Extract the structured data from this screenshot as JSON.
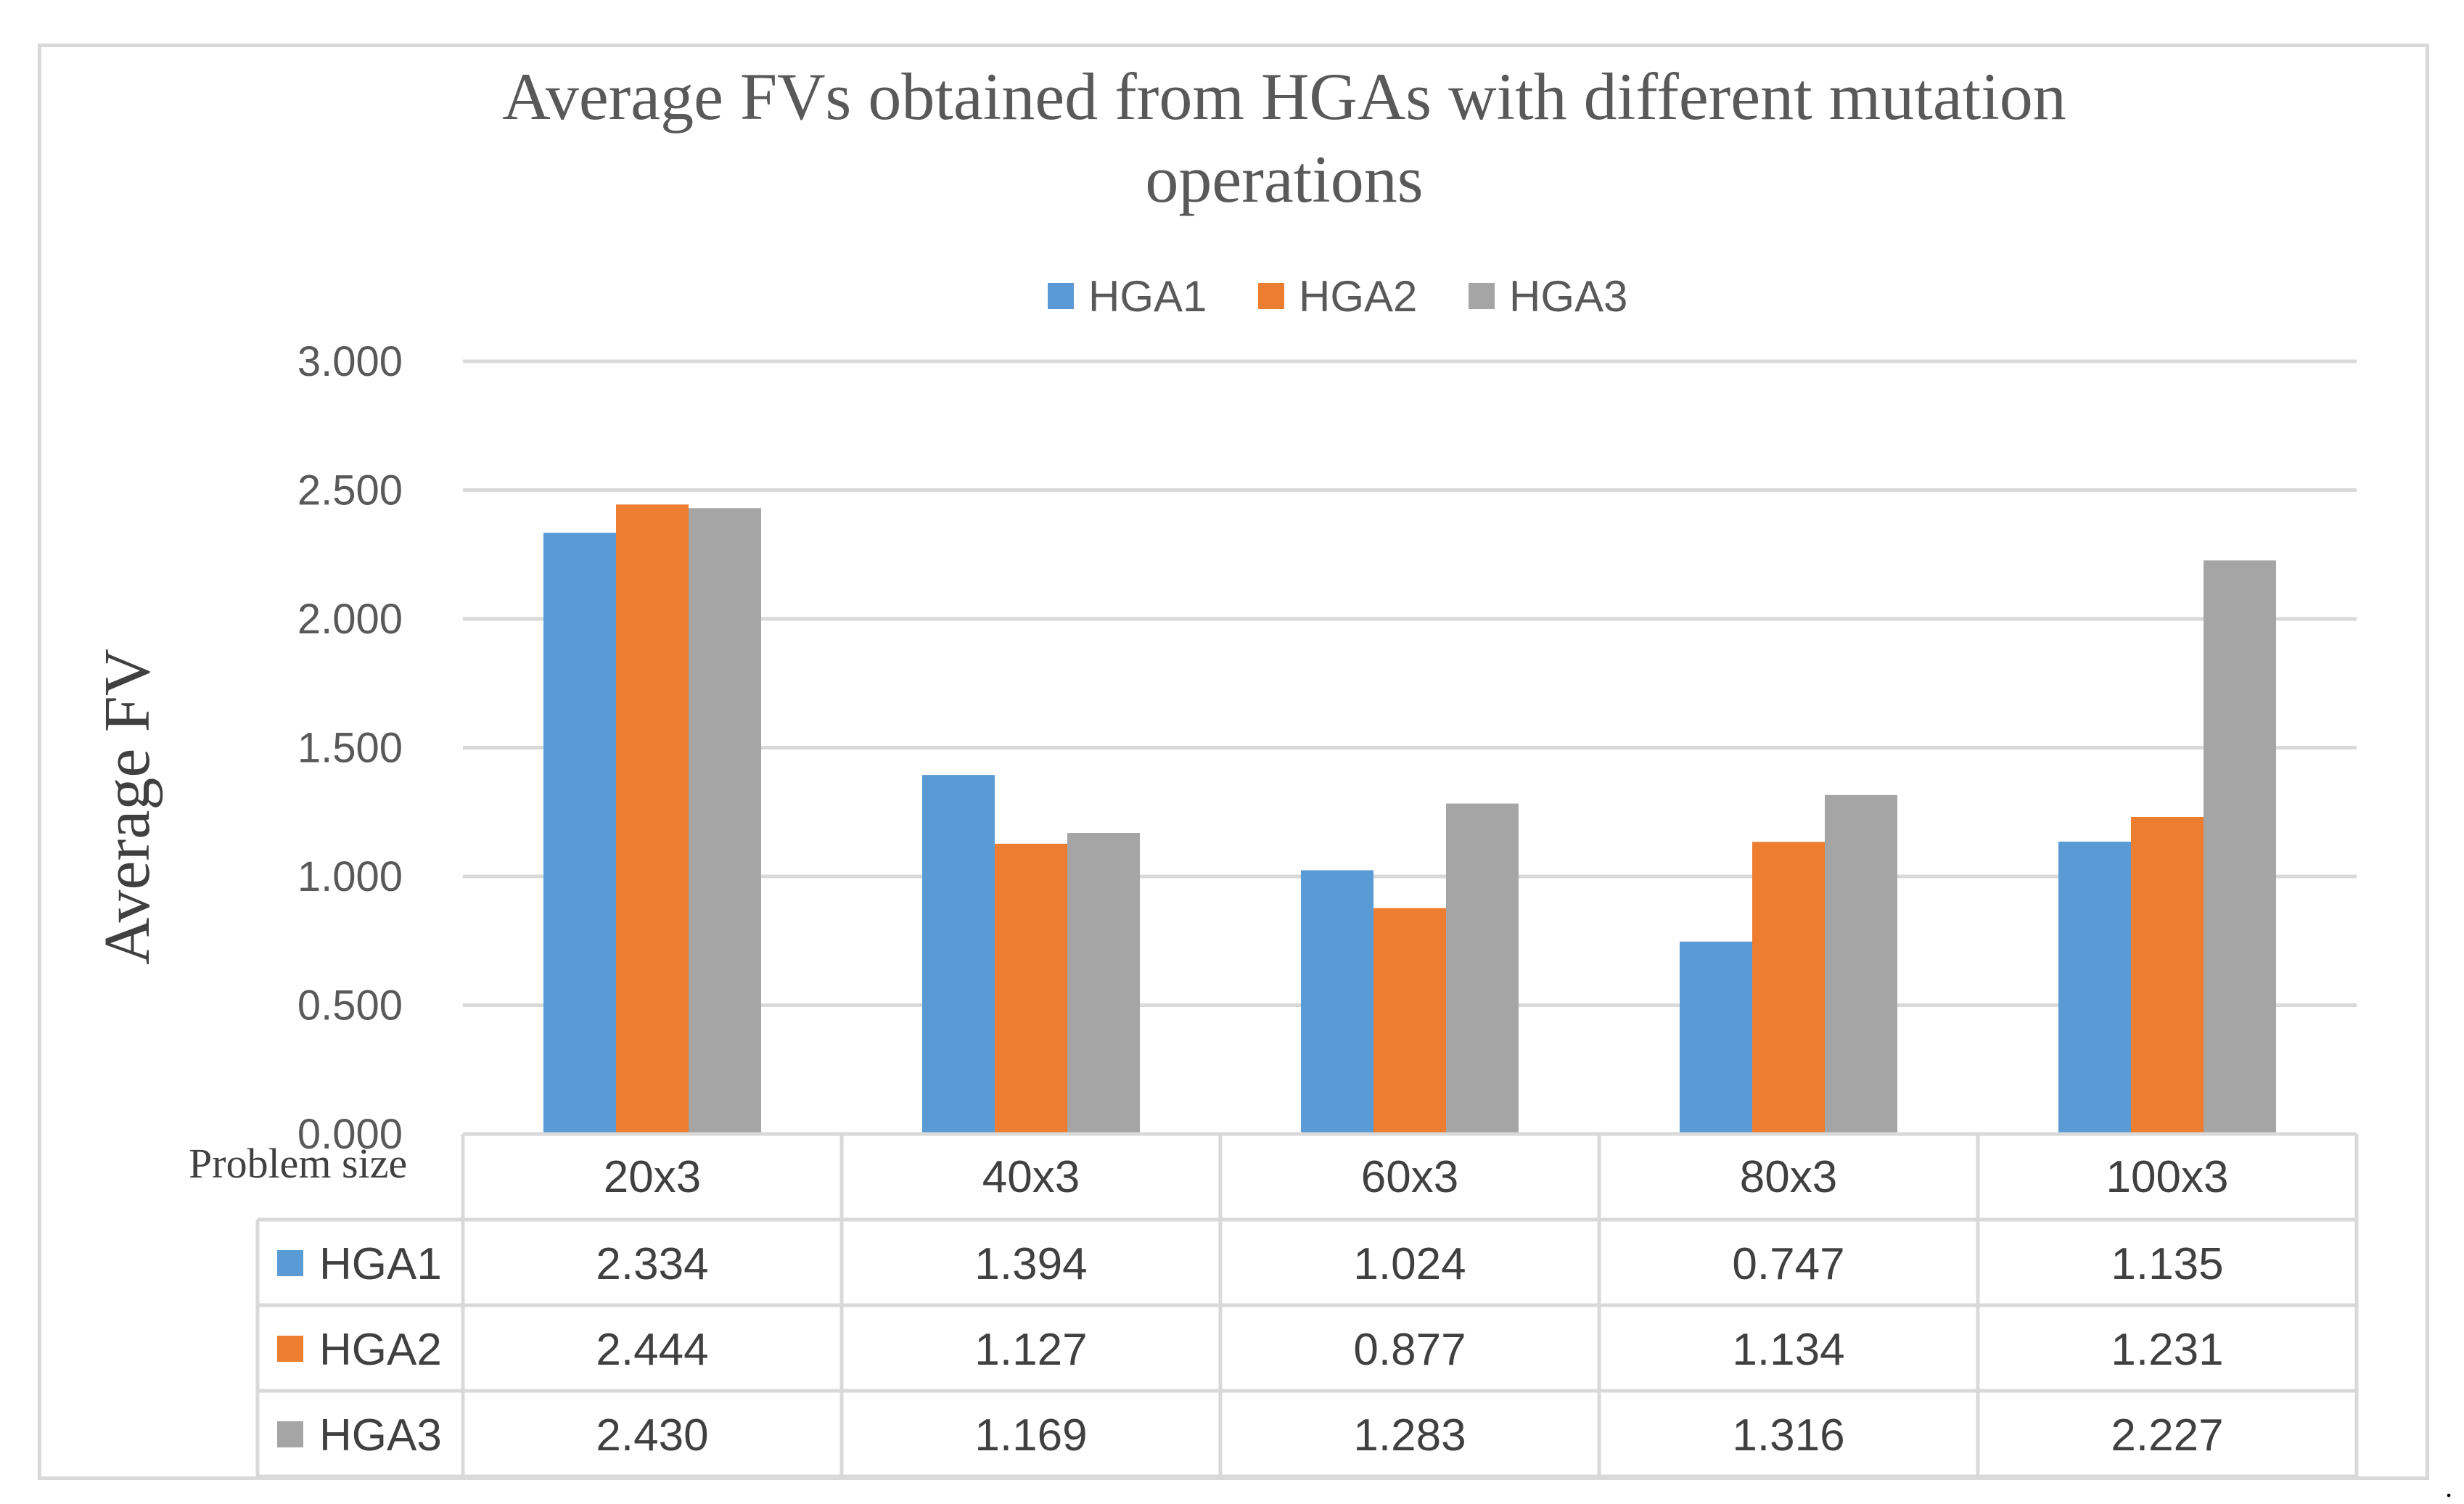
{
  "chart_data": {
    "type": "bar",
    "title_line1": "Average FVs obtained from HGAs with different mutation",
    "title_line2": "operations",
    "ylabel": "Average FV",
    "table_header_label": "Problem size",
    "categories": [
      "20x3",
      "40x3",
      "60x3",
      "80x3",
      "100x3"
    ],
    "ylim": [
      0,
      3
    ],
    "yticks": [
      0,
      0.5,
      1,
      1.5,
      2,
      2.5,
      3
    ],
    "ytick_labels": [
      "0.000",
      "0.500",
      "1.000",
      "1.500",
      "2.000",
      "2.500",
      "3.000"
    ],
    "legend_position": "top-center",
    "grid": true,
    "series": [
      {
        "name": "HGA1",
        "color": "#5b9bd5",
        "values": [
          2.334,
          1.394,
          1.024,
          0.747,
          1.135
        ],
        "labels": [
          "2.334",
          "1.394",
          "1.024",
          "0.747",
          "1.135"
        ]
      },
      {
        "name": "HGA2",
        "color": "#ed7d31",
        "values": [
          2.444,
          1.127,
          0.877,
          1.134,
          1.231
        ],
        "labels": [
          "2.444",
          "1.127",
          "0.877",
          "1.134",
          "1.231"
        ]
      },
      {
        "name": "HGA3",
        "color": "#a5a5a5",
        "values": [
          2.43,
          1.169,
          1.283,
          1.316,
          2.227
        ],
        "labels": [
          "2.430",
          "1.169",
          "1.283",
          "1.316",
          "2.227"
        ]
      }
    ]
  },
  "trailing_mark": "."
}
